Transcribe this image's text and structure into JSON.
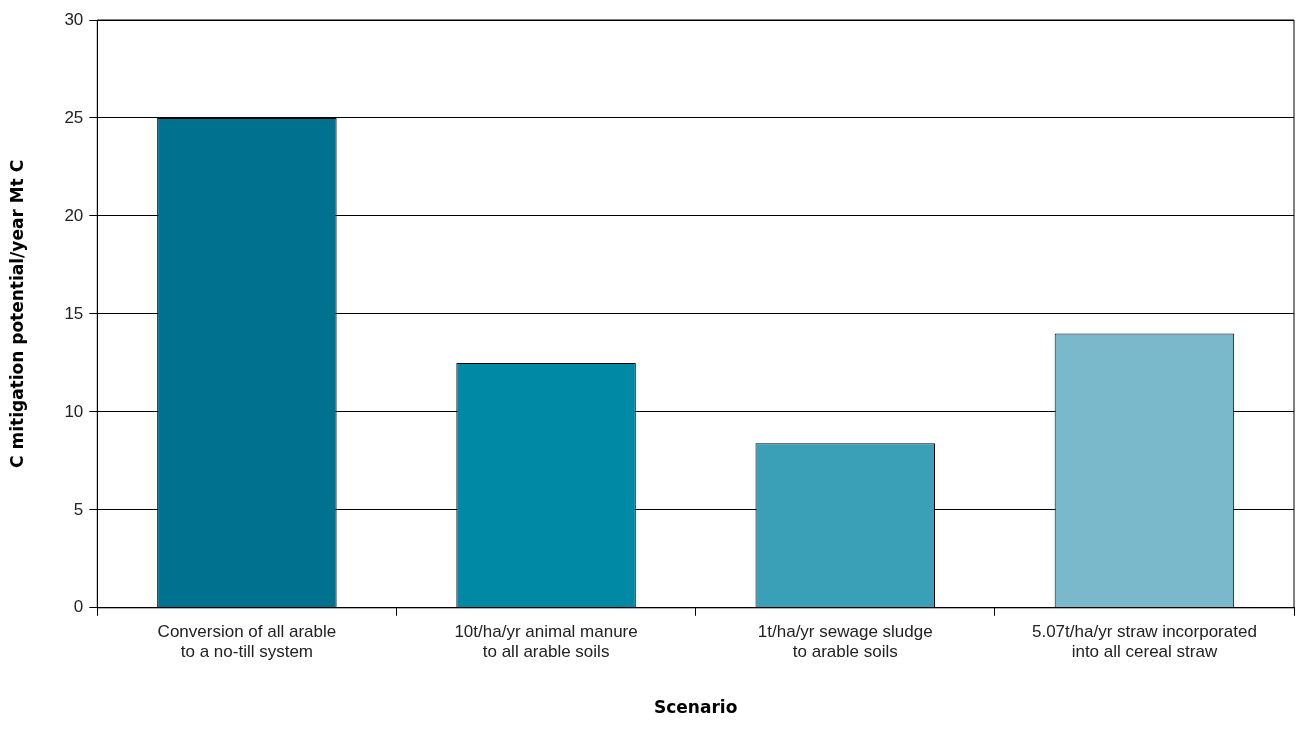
{
  "chart_data": {
    "type": "bar",
    "xlabel": "Scenario",
    "ylabel": "C mitigation potential/year Mt C",
    "categories": [
      "Conversion of all arable\nto a no-till system",
      "10t/ha/yr animal manure\nto all arable soils",
      "1t/ha/yr sewage sludge\nto arable soils",
      "5.07t/ha/yr straw incorporated\ninto all cereal straw"
    ],
    "values": [
      25,
      12.5,
      8.4,
      14
    ],
    "colors": [
      "#00728f",
      "#0089a5",
      "#3aa0b8",
      "#7ab8cc"
    ],
    "ylim": [
      0,
      30
    ],
    "yticks": [
      0,
      5,
      10,
      15,
      20,
      25,
      30
    ],
    "grid": "y",
    "legend": false
  }
}
